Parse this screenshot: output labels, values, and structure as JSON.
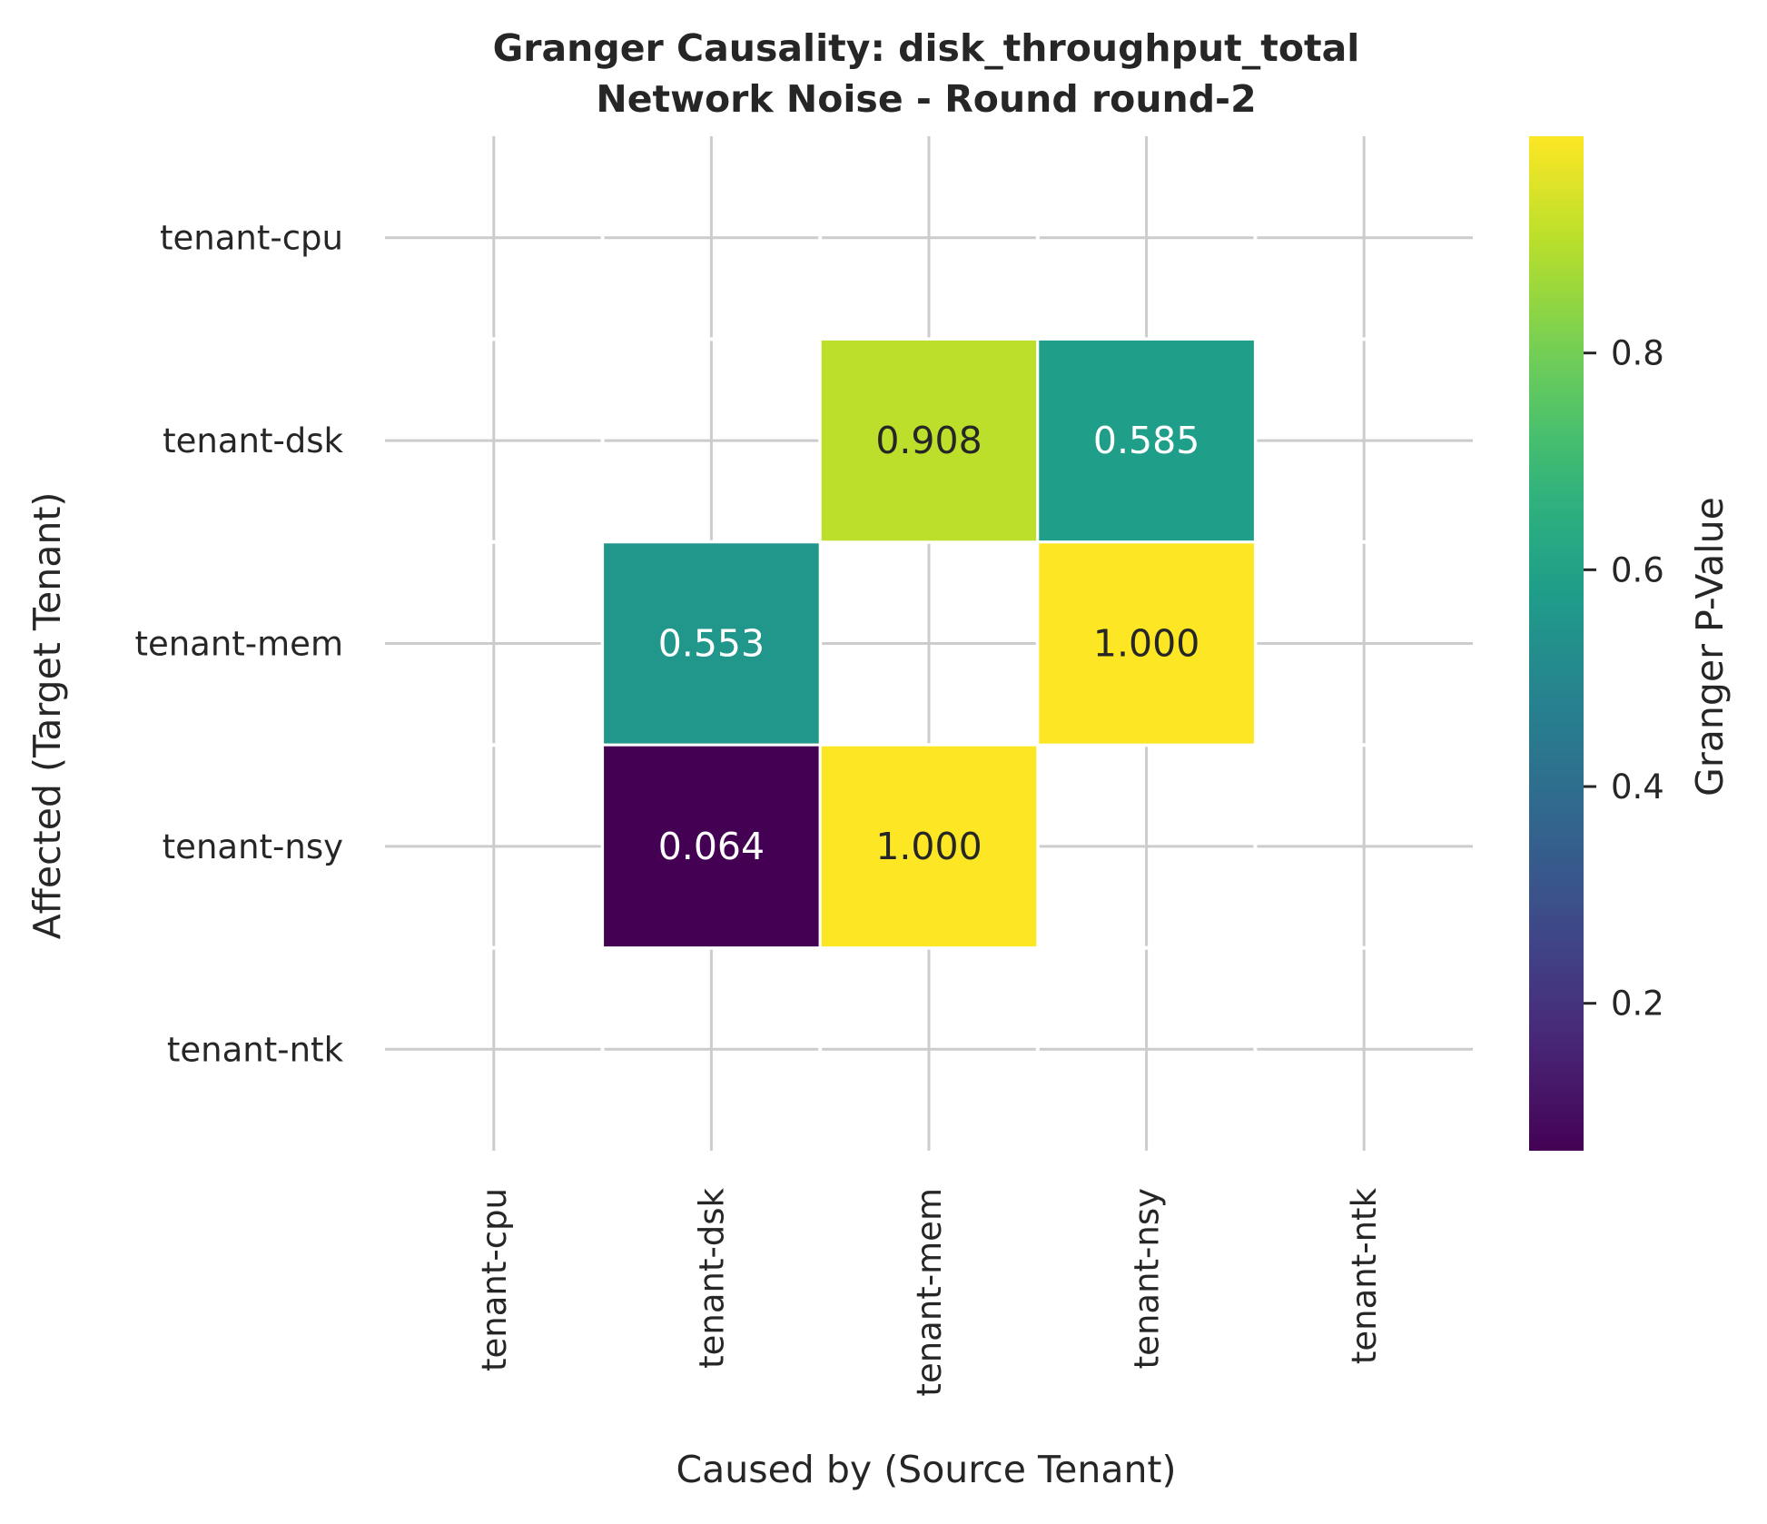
{
  "chart_data": {
    "type": "heatmap",
    "title": "Granger Causality: disk_throughput_total",
    "subtitle": "Network Noise - Round round-2",
    "xlabel": "Caused by (Source Tenant)",
    "ylabel": "Affected (Target Tenant)",
    "x_categories": [
      "tenant-cpu",
      "tenant-dsk",
      "tenant-mem",
      "tenant-nsy",
      "tenant-ntk"
    ],
    "y_categories": [
      "tenant-cpu",
      "tenant-dsk",
      "tenant-mem",
      "tenant-nsy",
      "tenant-ntk"
    ],
    "values": [
      [
        null,
        null,
        null,
        null,
        null
      ],
      [
        null,
        null,
        0.908,
        0.585,
        null
      ],
      [
        null,
        0.553,
        null,
        1.0,
        null
      ],
      [
        null,
        0.064,
        1.0,
        null,
        null
      ],
      [
        null,
        null,
        null,
        null,
        null
      ]
    ],
    "value_format": "0.000",
    "colormap": "viridis",
    "colorbar": {
      "label": "Granger P-Value",
      "range": [
        0.064,
        1.0
      ],
      "ticks": [
        0.2,
        0.4,
        0.6,
        0.8
      ],
      "tick_labels": [
        "0.2",
        "0.4",
        "0.6",
        "0.8"
      ]
    },
    "grid": true
  }
}
